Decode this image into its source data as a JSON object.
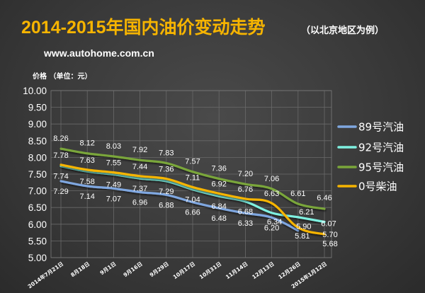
{
  "header": {
    "title": "2014-2015年国内油价变动走势",
    "subtitle": "（以北京地区为例）",
    "watermark": "www.autohome.com.cn"
  },
  "chart_data": {
    "type": "line",
    "ylabel": "价格 （单位：元）",
    "ylim": [
      5.0,
      10.0
    ],
    "y_ticks": [
      "5.00",
      "5.50",
      "6.00",
      "6.50",
      "7.00",
      "7.50",
      "8.00",
      "8.50",
      "9.00",
      "9.50",
      "10.00"
    ],
    "grid": true,
    "legend_position": "right",
    "categories": [
      "2014年7月21日",
      "8月18日",
      "9月1日",
      "9月16日",
      "9月29日",
      "10月17日",
      "10月31日",
      "11月14日",
      "12月13日",
      "12月26日",
      "2015年1月12日"
    ],
    "series": [
      {
        "name": "89号汽油",
        "color": "#7fa7e0",
        "values": [
          7.29,
          7.14,
          7.07,
          6.96,
          6.88,
          6.66,
          6.48,
          6.33,
          6.2,
          5.81,
          null
        ],
        "labels": [
          "7.29",
          "7.14",
          "7.07",
          "6.96",
          "6.88",
          "6.66",
          "6.48",
          "6.33",
          "6.20",
          "5.81",
          ""
        ]
      },
      {
        "name": "92号汽油",
        "color": "#7ff0e0",
        "values": [
          7.74,
          7.58,
          7.49,
          7.37,
          7.29,
          7.04,
          6.84,
          6.68,
          6.34,
          6.21,
          6.07
        ],
        "labels": [
          "7.74",
          "7.58",
          "7.49",
          "7.37",
          "7.29",
          "7.04",
          "6.84",
          "6.68",
          "6.34",
          "6.21",
          "6.07"
        ]
      },
      {
        "name": "95号汽油",
        "color": "#7aa63a",
        "values": [
          8.26,
          8.12,
          8.03,
          7.92,
          7.83,
          7.57,
          7.36,
          7.2,
          7.06,
          6.61,
          6.46
        ],
        "labels": [
          "8.26",
          "8.12",
          "8.03",
          "7.92",
          "7.83",
          "7.57",
          "7.36",
          "7.20",
          "7.06",
          "6.61",
          "6.46"
        ]
      },
      {
        "name": "0号柴油",
        "color": "#f6b400",
        "values": [
          7.78,
          7.63,
          7.55,
          7.44,
          7.36,
          7.11,
          6.92,
          6.76,
          6.63,
          5.9,
          5.7
        ],
        "labels": [
          "7.78",
          "7.63",
          "7.55",
          "7.44",
          "7.36",
          "7.11",
          "6.92",
          "6.76",
          "6.63",
          "5.90",
          "5.70"
        ]
      }
    ],
    "extra_labels": [
      "5.68"
    ]
  }
}
